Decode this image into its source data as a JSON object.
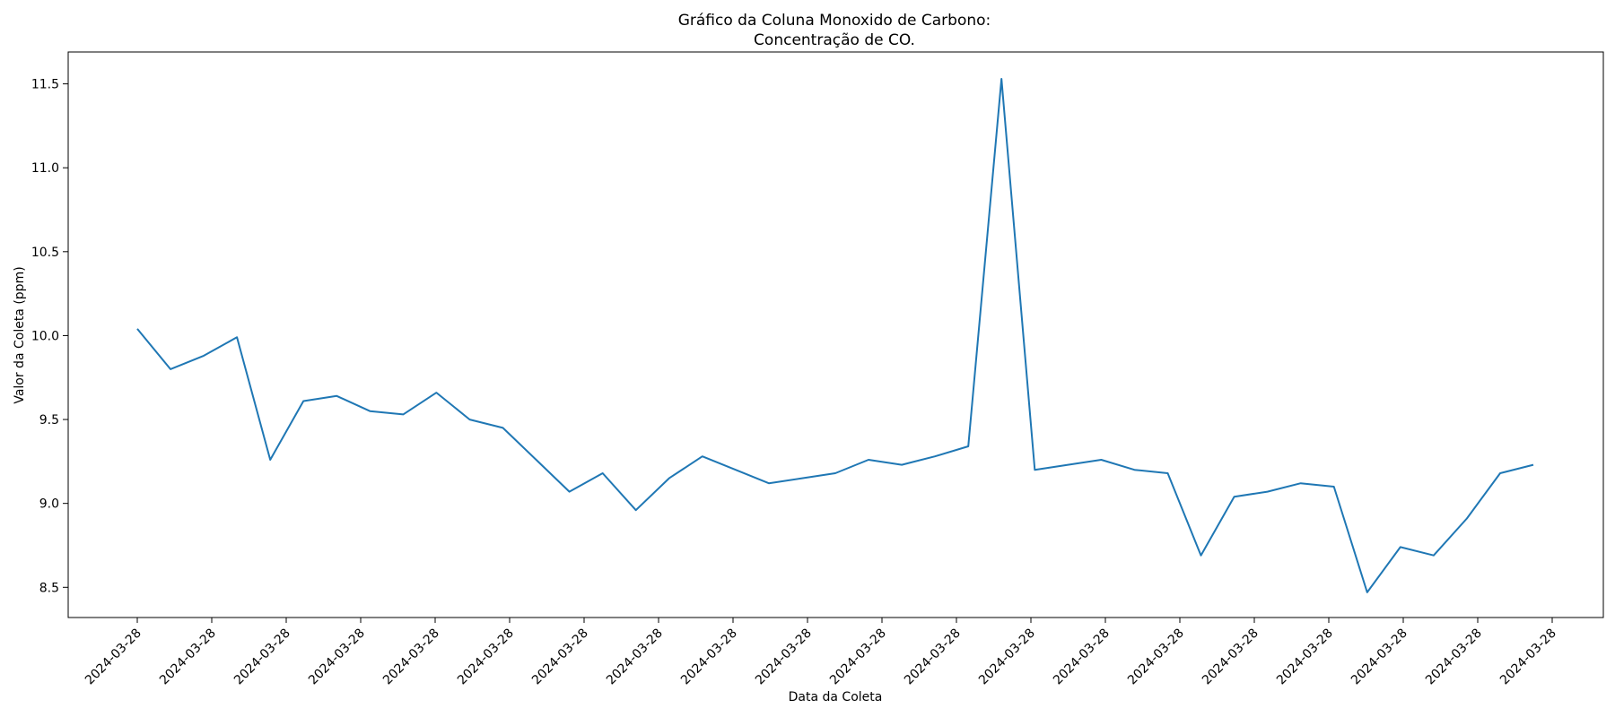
{
  "chart_data": {
    "type": "line",
    "title": "Gráfico da Coluna Monoxido de Carbono:\nConcentração de CO.",
    "title_lines": [
      "Gráfico da Coluna Monoxido de Carbono:",
      "Concentração de CO."
    ],
    "xlabel": "Data da Coleta",
    "ylabel": "Valor da Coleta (ppm)",
    "x_tick_labels": [
      "2024-03-28",
      "2024-03-28",
      "2024-03-28",
      "2024-03-28",
      "2024-03-28",
      "2024-03-28",
      "2024-03-28",
      "2024-03-28",
      "2024-03-28",
      "2024-03-28",
      "2024-03-28",
      "2024-03-28",
      "2024-03-28",
      "2024-03-28",
      "2024-03-28",
      "2024-03-28",
      "2024-03-28",
      "2024-03-28",
      "2024-03-28",
      "2024-03-28"
    ],
    "y_ticks": [
      8.5,
      9.0,
      9.5,
      10.0,
      10.5,
      11.0,
      11.5
    ],
    "y_tick_labels": [
      "8.5",
      "9.0",
      "9.5",
      "10.0",
      "10.5",
      "11.0",
      "11.5"
    ],
    "ylim": [
      8.32,
      11.69
    ],
    "grid": false,
    "legend": "none",
    "line_color": "#1f77b4",
    "series": [
      {
        "values": [
          10.04,
          9.8,
          9.88,
          9.99,
          9.26,
          9.61,
          9.64,
          9.55,
          9.53,
          9.66,
          9.5,
          9.45,
          9.26,
          9.07,
          9.18,
          8.96,
          9.15,
          9.28,
          9.2,
          9.12,
          9.15,
          9.18,
          9.26,
          9.23,
          9.28,
          9.34,
          11.53,
          9.2,
          9.23,
          9.26,
          9.2,
          9.18,
          8.69,
          9.04,
          9.07,
          9.12,
          9.1,
          8.47,
          8.74,
          8.69,
          8.91,
          9.18,
          9.23
        ]
      }
    ]
  }
}
